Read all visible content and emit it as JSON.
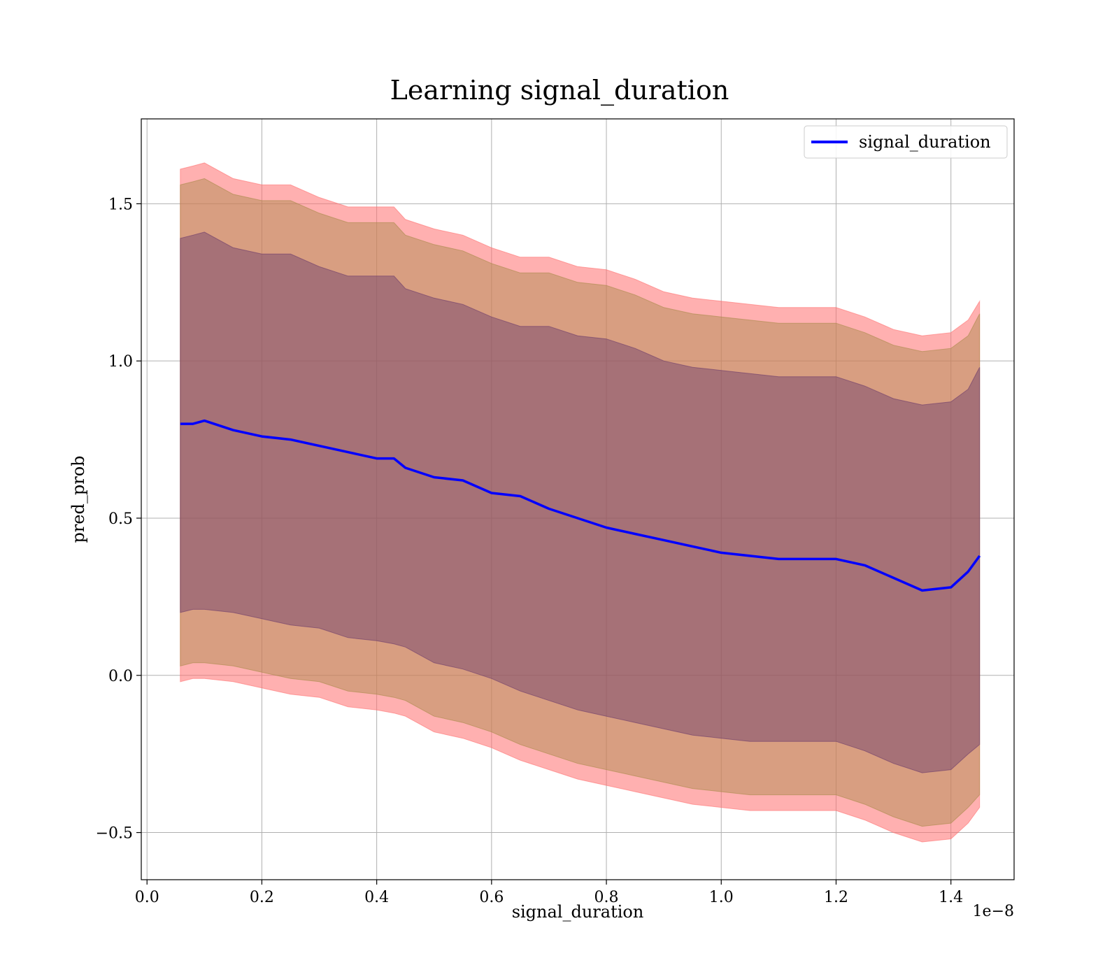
{
  "chart_data": {
    "type": "line",
    "title": "Learning signal_duration",
    "xlabel": "signal_duration",
    "ylabel": "pred_prob",
    "x_offset_label": "1e−8",
    "xlim": [
      -0.01,
      1.51
    ],
    "ylim": [
      -0.65,
      1.77
    ],
    "xticks": [
      0.0,
      0.2,
      0.4,
      0.6,
      0.8,
      1.0,
      1.2,
      1.4
    ],
    "xtick_labels": [
      "0.0",
      "0.2",
      "0.4",
      "0.6",
      "0.8",
      "1.0",
      "1.2",
      "1.4"
    ],
    "yticks": [
      -0.5,
      0.0,
      0.5,
      1.0,
      1.5
    ],
    "ytick_labels": [
      "−0.5",
      "0.0",
      "0.5",
      "1.0",
      "1.5"
    ],
    "grid": true,
    "legend_position": "top-right",
    "x": [
      0.058,
      0.08,
      0.1,
      0.15,
      0.2,
      0.25,
      0.3,
      0.35,
      0.4,
      0.43,
      0.45,
      0.5,
      0.55,
      0.6,
      0.65,
      0.7,
      0.75,
      0.8,
      0.85,
      0.9,
      0.95,
      1.0,
      1.05,
      1.1,
      1.15,
      1.2,
      1.25,
      1.3,
      1.35,
      1.4,
      1.43,
      1.45
    ],
    "mean": [
      0.8,
      0.8,
      0.81,
      0.78,
      0.76,
      0.75,
      0.73,
      0.71,
      0.69,
      0.69,
      0.66,
      0.63,
      0.62,
      0.58,
      0.57,
      0.53,
      0.5,
      0.47,
      0.45,
      0.43,
      0.41,
      0.39,
      0.38,
      0.37,
      0.37,
      0.37,
      0.35,
      0.31,
      0.27,
      0.28,
      0.33,
      0.38
    ],
    "bands": [
      {
        "k": 3,
        "color": "#ff6f6f",
        "opacity": 0.55,
        "upper": [
          1.61,
          1.62,
          1.63,
          1.58,
          1.56,
          1.56,
          1.52,
          1.49,
          1.49,
          1.49,
          1.45,
          1.42,
          1.4,
          1.36,
          1.33,
          1.33,
          1.3,
          1.29,
          1.26,
          1.22,
          1.2,
          1.19,
          1.18,
          1.17,
          1.17,
          1.17,
          1.14,
          1.1,
          1.08,
          1.09,
          1.13,
          1.19
        ],
        "lower": [
          -0.02,
          -0.01,
          -0.01,
          -0.02,
          -0.04,
          -0.06,
          -0.07,
          -0.1,
          -0.11,
          -0.12,
          -0.13,
          -0.18,
          -0.2,
          -0.23,
          -0.27,
          -0.3,
          -0.33,
          -0.35,
          -0.37,
          -0.39,
          -0.41,
          -0.42,
          -0.43,
          -0.43,
          -0.43,
          -0.43,
          -0.46,
          -0.5,
          -0.53,
          -0.52,
          -0.47,
          -0.42
        ]
      },
      {
        "k": 2,
        "color": "#a98a4a",
        "opacity": 0.45,
        "upper": [
          1.56,
          1.57,
          1.58,
          1.53,
          1.51,
          1.51,
          1.47,
          1.44,
          1.44,
          1.44,
          1.4,
          1.37,
          1.35,
          1.31,
          1.28,
          1.28,
          1.25,
          1.24,
          1.21,
          1.17,
          1.15,
          1.14,
          1.13,
          1.12,
          1.12,
          1.12,
          1.09,
          1.05,
          1.03,
          1.04,
          1.08,
          1.15
        ],
        "lower": [
          0.03,
          0.04,
          0.04,
          0.03,
          0.01,
          -0.01,
          -0.02,
          -0.05,
          -0.06,
          -0.07,
          -0.08,
          -0.13,
          -0.15,
          -0.18,
          -0.22,
          -0.25,
          -0.28,
          -0.3,
          -0.32,
          -0.34,
          -0.36,
          -0.37,
          -0.38,
          -0.38,
          -0.38,
          -0.38,
          -0.41,
          -0.45,
          -0.48,
          -0.47,
          -0.42,
          -0.38
        ]
      },
      {
        "k": 1,
        "color": "#6a3a6a",
        "opacity": 0.45,
        "upper": [
          1.39,
          1.4,
          1.41,
          1.36,
          1.34,
          1.34,
          1.3,
          1.27,
          1.27,
          1.27,
          1.23,
          1.2,
          1.18,
          1.14,
          1.11,
          1.11,
          1.08,
          1.07,
          1.04,
          1.0,
          0.98,
          0.97,
          0.96,
          0.95,
          0.95,
          0.95,
          0.92,
          0.88,
          0.86,
          0.87,
          0.91,
          0.98
        ],
        "lower": [
          0.2,
          0.21,
          0.21,
          0.2,
          0.18,
          0.16,
          0.15,
          0.12,
          0.11,
          0.1,
          0.09,
          0.04,
          0.02,
          -0.01,
          -0.05,
          -0.08,
          -0.11,
          -0.13,
          -0.15,
          -0.17,
          -0.19,
          -0.2,
          -0.21,
          -0.21,
          -0.21,
          -0.21,
          -0.24,
          -0.28,
          -0.31,
          -0.3,
          -0.25,
          -0.22
        ]
      }
    ],
    "series": [
      {
        "name": "signal_duration",
        "color": "#0000ff"
      }
    ]
  }
}
